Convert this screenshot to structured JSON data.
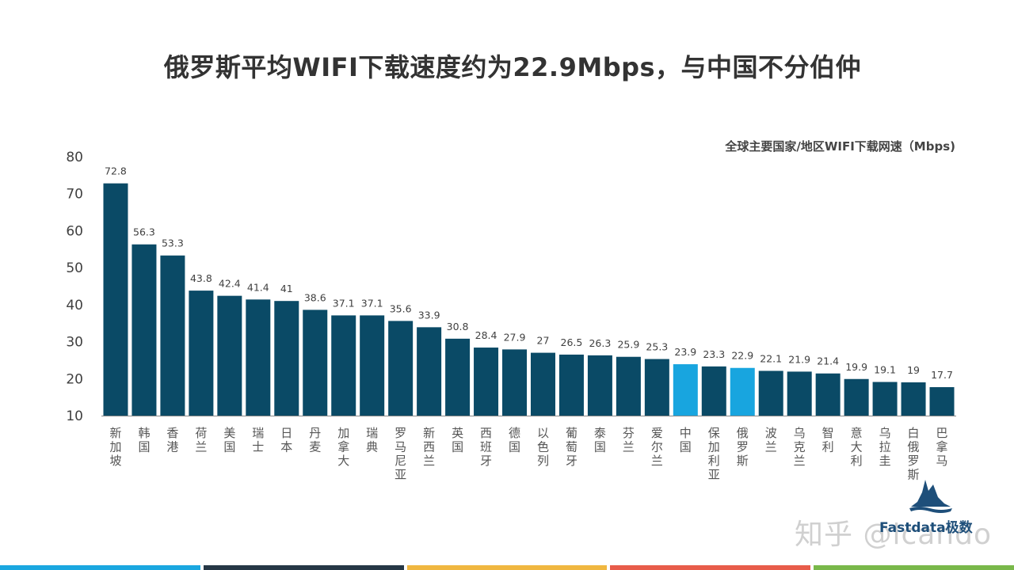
{
  "page": {
    "title": "俄罗斯平均WIFI下载速度约为22.9Mbps，与中国不分伯仲",
    "logo_text": "Fastdata极数",
    "watermark": "知乎 @lcando",
    "stripe_colors": [
      "#1aa7e0",
      "#263746",
      "#f0b740",
      "#e85c4a",
      "#79b84a"
    ]
  },
  "chart_data": {
    "type": "bar",
    "title": "全球主要国家/地区WIFI下载网速（Mbps)",
    "categories": [
      "新加坡",
      "韩国",
      "香港",
      "荷兰",
      "美国",
      "瑞士",
      "日本",
      "丹麦",
      "加拿大",
      "瑞典",
      "罗马尼亚",
      "新西兰",
      "英国",
      "西班牙",
      "德国",
      "以色列",
      "葡萄牙",
      "泰国",
      "芬兰",
      "爱尔兰",
      "中国",
      "保加利亚",
      "俄罗斯",
      "波兰",
      "乌克兰",
      "智利",
      "意大利",
      "乌拉圭",
      "白俄罗斯",
      "巴拿马"
    ],
    "values": [
      72.8,
      56.3,
      53.3,
      43.8,
      42.4,
      41.4,
      41,
      38.6,
      37.1,
      37.1,
      35.6,
      33.9,
      30.8,
      28.4,
      27.9,
      27,
      26.5,
      26.3,
      25.9,
      25.3,
      23.9,
      23.3,
      22.9,
      22.1,
      21.9,
      21.4,
      19.9,
      19.1,
      19,
      17.7
    ],
    "data_labels": [
      "72.8",
      "56.3",
      "53.3",
      "43.8",
      "42.4",
      "41.4",
      "41",
      "38.6",
      "37.1",
      "37.1",
      "35.6",
      "33.9",
      "30.8",
      "28.4",
      "27.9",
      "27",
      "26.5",
      "26.3",
      "25.9",
      "25.3",
      "23.9",
      "23.3",
      "22.9",
      "22.1",
      "21.9",
      "21.4",
      "19.9",
      "19.1",
      "19",
      "17.7"
    ],
    "highlighted": [
      "中国",
      "俄罗斯"
    ],
    "ylim": [
      10,
      80
    ],
    "yticks": [
      10,
      20,
      30,
      40,
      50,
      60,
      70,
      80
    ],
    "colors": {
      "bar": "#0a4a66",
      "highlight": "#18a5df",
      "axis": "#888888",
      "label": "#404040"
    },
    "grid": false,
    "legend": "none",
    "xlabel": "",
    "ylabel": ""
  }
}
